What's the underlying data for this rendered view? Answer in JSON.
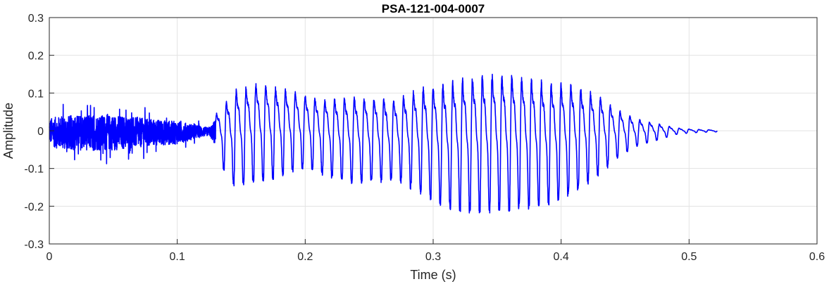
{
  "chart_data": {
    "type": "line",
    "title": "PSA-121-004-0007",
    "xlabel": "Time (s)",
    "ylabel": "Amplitude",
    "xlim": [
      0,
      0.6
    ],
    "ylim": [
      -0.3,
      0.3
    ],
    "xticks": [
      0,
      0.1,
      0.2,
      0.3,
      0.4,
      0.5,
      0.6
    ],
    "xtick_labels": [
      "0",
      "0.1",
      "0.2",
      "0.3",
      "0.4",
      "0.5",
      "0.6"
    ],
    "yticks": [
      -0.3,
      -0.2,
      -0.1,
      0,
      0.1,
      0.2,
      0.3
    ],
    "ytick_labels": [
      "-0.3",
      "-0.2",
      "-0.1",
      "0",
      "0.1",
      "0.2",
      "0.3"
    ],
    "grid": true,
    "line_color": "#0000ff",
    "envelope": {
      "t": [
        0,
        0.005,
        0.02,
        0.05,
        0.08,
        0.1,
        0.115,
        0.125,
        0.13,
        0.145,
        0.16,
        0.175,
        0.2,
        0.215,
        0.235,
        0.255,
        0.27,
        0.29,
        0.31,
        0.33,
        0.35,
        0.37,
        0.39,
        0.41,
        0.43,
        0.445,
        0.46,
        0.47,
        0.48,
        0.49,
        0.5,
        0.51,
        0.522
      ],
      "upper": [
        0.06,
        0.07,
        0.08,
        0.08,
        0.06,
        0.05,
        0.03,
        0.015,
        0.06,
        0.14,
        0.16,
        0.15,
        0.12,
        0.11,
        0.12,
        0.12,
        0.11,
        0.15,
        0.17,
        0.19,
        0.2,
        0.19,
        0.17,
        0.16,
        0.12,
        0.07,
        0.04,
        0.03,
        0.02,
        0.01,
        0.006,
        0.004,
        0.003
      ],
      "lower": [
        -0.06,
        -0.08,
        -0.09,
        -0.09,
        -0.07,
        -0.06,
        -0.035,
        -0.02,
        -0.07,
        -0.15,
        -0.14,
        -0.13,
        -0.1,
        -0.12,
        -0.14,
        -0.14,
        -0.13,
        -0.17,
        -0.21,
        -0.22,
        -0.22,
        -0.21,
        -0.2,
        -0.17,
        -0.12,
        -0.07,
        -0.04,
        -0.03,
        -0.02,
        -0.01,
        -0.006,
        -0.004,
        -0.003
      ]
    },
    "phases": [
      {
        "start": 0,
        "end": 0.13,
        "kind": "noise"
      },
      {
        "start": 0.13,
        "end": 0.522,
        "kind": "voiced",
        "f0_hz": 130
      }
    ]
  }
}
